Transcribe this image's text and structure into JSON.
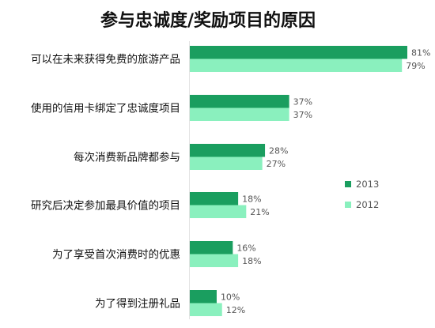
{
  "chart_data": {
    "type": "bar",
    "orientation": "horizontal",
    "title": "参与忠诚度/奖励项目的原因",
    "categories": [
      "可以在未来获得免费的旅游产品",
      "使用的信用卡绑定了忠诚度项目",
      "每次消费新品牌都参与",
      "研究后决定参加最具价值的项目",
      "为了享受首次消费时的优惠",
      "为了得到注册礼品"
    ],
    "series": [
      {
        "name": "2013",
        "values": [
          81,
          37,
          28,
          18,
          16,
          10
        ],
        "value_labels": [
          "81%",
          "37%",
          "28%",
          "18%",
          "16%",
          "10%"
        ],
        "color": "#1a9e5f"
      },
      {
        "name": "2012",
        "values": [
          79,
          37,
          27,
          21,
          18,
          12
        ],
        "value_labels": [
          "79%",
          "37%",
          "27%",
          "21%",
          "18%",
          "12%"
        ],
        "color": "#8af0be"
      }
    ],
    "xlim": [
      0,
      81
    ],
    "grid": false,
    "legend_position": "right"
  }
}
